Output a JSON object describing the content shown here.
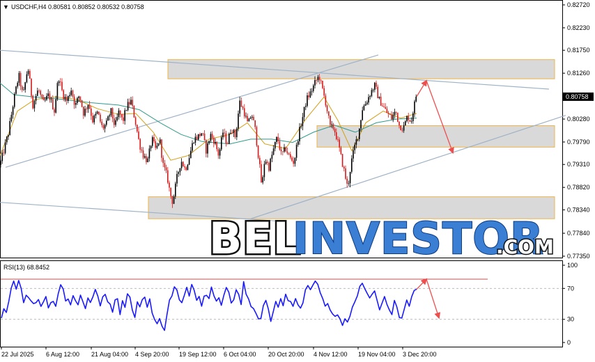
{
  "header": {
    "symbol_triangle": "▼",
    "instrument": "USDCHF,H4 0.80581 0.80852 0.80532 0.80758"
  },
  "rsi_header": "RSI(13) 68.8452",
  "watermark": {
    "part1": "BEL",
    "part2": "INVESTOR",
    "part3": ".COM"
  },
  "colors": {
    "bull": "#000000",
    "bear": "#d21a1a",
    "ma_fast": "#d4a017",
    "ma_slow": "#2f9a8c",
    "trend": "#9fb2c6",
    "zone_fill": "#d9d9d9",
    "zone_border": "#f0b44a",
    "arrow": "#ee4e4e",
    "rsi": "#1a1aff",
    "rsi_level": "#c0504d"
  },
  "chart_data": [
    {
      "type": "candlestick",
      "title": "USDCHF,H4",
      "x_labels": [
        "22 Jul 2025",
        "6 Aug 12:00",
        "21 Aug 04:00",
        "4 Sep 20:00",
        "19 Sep 12:00",
        "6 Oct 04:00",
        "20 Oct 20:00",
        "4 Nov 12:00",
        "19 Nov 04:00",
        "3 Dec 20:00"
      ],
      "y_ticks": [
        "0.82720",
        "0.82230",
        "0.81750",
        "0.81260",
        "0.80758",
        "0.80280",
        "0.79790",
        "0.79310",
        "0.78820",
        "0.78340",
        "0.77840",
        "0.77350"
      ],
      "ylim": [
        0.7735,
        0.8272
      ],
      "current_price_label": "0.80758",
      "last_bar": {
        "open": 0.80581,
        "high": 0.80852,
        "low": 0.80532,
        "close": 0.80758
      },
      "path": [
        [
          0,
          0.793
        ],
        [
          12,
          0.7998
        ],
        [
          20,
          0.807
        ],
        [
          27,
          0.8122
        ],
        [
          33,
          0.8076
        ],
        [
          40,
          0.814
        ],
        [
          47,
          0.8058
        ],
        [
          55,
          0.8092
        ],
        [
          62,
          0.806
        ],
        [
          70,
          0.808
        ],
        [
          78,
          0.8046
        ],
        [
          84,
          0.812
        ],
        [
          90,
          0.8082
        ],
        [
          96,
          0.8066
        ],
        [
          102,
          0.8093
        ],
        [
          108,
          0.8056
        ],
        [
          114,
          0.808
        ],
        [
          120,
          0.804
        ],
        [
          127,
          0.8063
        ],
        [
          133,
          0.8025
        ],
        [
          140,
          0.8042
        ],
        [
          147,
          0.8008
        ],
        [
          153,
          0.8018
        ],
        [
          159,
          0.8046
        ],
        [
          165,
          0.8012
        ],
        [
          171,
          0.8045
        ],
        [
          176,
          0.8022
        ],
        [
          182,
          0.8055
        ],
        [
          188,
          0.8066
        ],
        [
          194,
          0.8025
        ],
        [
          200,
          0.7975
        ],
        [
          206,
          0.795
        ],
        [
          212,
          0.7938
        ],
        [
          218,
          0.7986
        ],
        [
          224,
          0.796
        ],
        [
          229,
          0.7988
        ],
        [
          234,
          0.793
        ],
        [
          240,
          0.7905
        ],
        [
          244,
          0.787
        ],
        [
          248,
          0.785
        ],
        [
          254,
          0.7903
        ],
        [
          260,
          0.794
        ],
        [
          266,
          0.792
        ],
        [
          272,
          0.795
        ],
        [
          278,
          0.7985
        ],
        [
          284,
          0.799
        ],
        [
          290,
          0.8
        ],
        [
          296,
          0.796
        ],
        [
          302,
          0.7995
        ],
        [
          308,
          0.798
        ],
        [
          314,
          0.795
        ],
        [
          320,
          0.8
        ],
        [
          326,
          0.7975
        ],
        [
          332,
          0.801
        ],
        [
          338,
          0.799
        ],
        [
          344,
          0.8065
        ],
        [
          350,
          0.8045
        ],
        [
          356,
          0.8015
        ],
        [
          361,
          0.804
        ],
        [
          366,
          0.8008
        ],
        [
          372,
          0.7935
        ],
        [
          376,
          0.788
        ],
        [
          380,
          0.7945
        ],
        [
          386,
          0.7925
        ],
        [
          392,
          0.796
        ],
        [
          398,
          0.799
        ],
        [
          404,
          0.795
        ],
        [
          410,
          0.7965
        ],
        [
          416,
          0.7945
        ],
        [
          422,
          0.7935
        ],
        [
          428,
          0.799
        ],
        [
          434,
          0.803
        ],
        [
          440,
          0.807
        ],
        [
          446,
          0.8085
        ],
        [
          452,
          0.8105
        ],
        [
          458,
          0.812
        ],
        [
          463,
          0.809
        ],
        [
          468,
          0.806
        ],
        [
          474,
          0.801
        ],
        [
          479,
          0.801
        ],
        [
          484,
          0.7985
        ],
        [
          489,
          0.795
        ],
        [
          495,
          0.791
        ],
        [
          499,
          0.788
        ],
        [
          504,
          0.7935
        ],
        [
          510,
          0.7975
        ],
        [
          515,
          0.8
        ],
        [
          520,
          0.805
        ],
        [
          526,
          0.8065
        ],
        [
          532,
          0.8085
        ],
        [
          538,
          0.81
        ],
        [
          544,
          0.807
        ],
        [
          550,
          0.8055
        ],
        [
          556,
          0.804
        ],
        [
          562,
          0.803
        ],
        [
          568,
          0.8045
        ],
        [
          573,
          0.8015
        ],
        [
          579,
          0.8008
        ],
        [
          585,
          0.8035
        ],
        [
          590,
          0.8022
        ],
        [
          594,
          0.8055
        ],
        [
          598,
          0.8076
        ]
      ],
      "moving_averages": [
        {
          "role": "fast",
          "path": [
            [
              0,
              0.795
            ],
            [
              25,
              0.8045
            ],
            [
              50,
              0.807
            ],
            [
              80,
              0.8075
            ],
            [
              110,
              0.807
            ],
            [
              140,
              0.805
            ],
            [
              170,
              0.8038
            ],
            [
              195,
              0.804
            ],
            [
              220,
              0.8
            ],
            [
              245,
              0.794
            ],
            [
              270,
              0.795
            ],
            [
              300,
              0.7985
            ],
            [
              330,
              0.7995
            ],
            [
              355,
              0.802
            ],
            [
              380,
              0.7975
            ],
            [
              410,
              0.7965
            ],
            [
              440,
              0.803
            ],
            [
              465,
              0.8075
            ],
            [
              485,
              0.8025
            ],
            [
              505,
              0.796
            ],
            [
              525,
              0.802
            ],
            [
              550,
              0.8045
            ],
            [
              575,
              0.803
            ],
            [
              598,
              0.804
            ]
          ]
        },
        {
          "role": "slow",
          "path": [
            [
              0,
              0.8105
            ],
            [
              20,
              0.808
            ],
            [
              50,
              0.8075
            ],
            [
              90,
              0.807
            ],
            [
              130,
              0.8063
            ],
            [
              170,
              0.8058
            ],
            [
              200,
              0.8048
            ],
            [
              230,
              0.802
            ],
            [
              260,
              0.7995
            ],
            [
              290,
              0.798
            ],
            [
              330,
              0.7975
            ],
            [
              360,
              0.7985
            ],
            [
              390,
              0.7985
            ],
            [
              420,
              0.7978
            ],
            [
              450,
              0.8
            ],
            [
              480,
              0.8015
            ],
            [
              510,
              0.8
            ],
            [
              540,
              0.802
            ],
            [
              570,
              0.8028
            ],
            [
              598,
              0.803
            ]
          ]
        }
      ],
      "trendlines": [
        {
          "from": [
            0,
            0.8175
          ],
          "to": [
            788,
            0.8092
          ]
        },
        {
          "from": [
            8,
            0.7925
          ],
          "to": [
            543,
            0.8165
          ]
        },
        {
          "from": [
            0,
            0.785
          ],
          "to": [
            400,
            0.781
          ]
        },
        {
          "from": [
            360,
            0.7815
          ],
          "to": [
            812,
            0.8036
          ]
        }
      ],
      "zones": [
        {
          "x0": 241,
          "x1": 796,
          "y_top": 0.8155,
          "y_bottom": 0.8114
        },
        {
          "x0": 455,
          "x1": 796,
          "y_top": 0.8014,
          "y_bottom": 0.7968
        },
        {
          "x0": 213,
          "x1": 796,
          "y_top": 0.7862,
          "y_bottom": 0.7815
        }
      ],
      "arrows": [
        {
          "from": [
            598,
            0.8076
          ],
          "to": [
            612,
            0.811
          ]
        },
        {
          "from": [
            612,
            0.811
          ],
          "to": [
            650,
            0.7956
          ]
        }
      ]
    },
    {
      "type": "line",
      "title": "RSI(13) 68.8452",
      "ylim": [
        0,
        100
      ],
      "y_ticks": [
        "100",
        "70",
        "30",
        "0"
      ],
      "levels": [
        30,
        70
      ],
      "level_line": 82,
      "values": [
        33,
        44,
        39,
        55,
        70,
        78,
        70,
        80,
        68,
        52,
        62,
        57,
        55,
        50,
        52,
        55,
        48,
        52,
        58,
        46,
        53,
        55,
        47,
        64,
        73,
        68,
        52,
        57,
        50,
        62,
        53,
        47,
        60,
        52,
        45,
        57,
        52,
        58,
        68,
        62,
        47,
        58,
        62,
        53,
        48,
        40,
        56,
        58,
        38,
        53,
        47,
        62,
        58,
        40,
        32,
        53,
        48,
        57,
        60,
        47,
        58,
        38,
        30,
        25,
        30,
        22,
        15,
        36,
        56,
        62,
        73,
        68,
        57,
        50,
        62,
        70,
        62,
        77,
        66,
        54,
        60,
        48,
        58,
        60,
        55,
        70,
        60,
        52,
        57,
        47,
        60,
        73,
        65,
        52,
        55,
        70,
        62,
        50,
        77,
        64,
        56,
        46,
        43,
        36,
        29,
        32,
        48,
        55,
        43,
        27,
        38,
        52,
        46,
        58,
        48,
        62,
        56,
        52,
        48,
        55,
        47,
        44,
        53,
        67,
        72,
        70,
        74,
        79,
        75,
        65,
        57,
        47,
        52,
        44,
        38,
        32,
        37,
        30,
        22,
        30,
        26,
        34,
        45,
        52,
        62,
        72,
        76,
        70,
        64,
        56,
        62,
        67,
        54,
        44,
        52,
        60,
        48,
        42,
        38,
        54,
        48,
        32,
        30,
        42,
        55,
        48,
        60,
        66,
        69
      ],
      "arrows": [
        {
          "from": [
            598,
            69
          ],
          "to": [
            612,
            82
          ]
        },
        {
          "from": [
            612,
            82
          ],
          "to": [
            630,
            32
          ]
        }
      ]
    }
  ]
}
